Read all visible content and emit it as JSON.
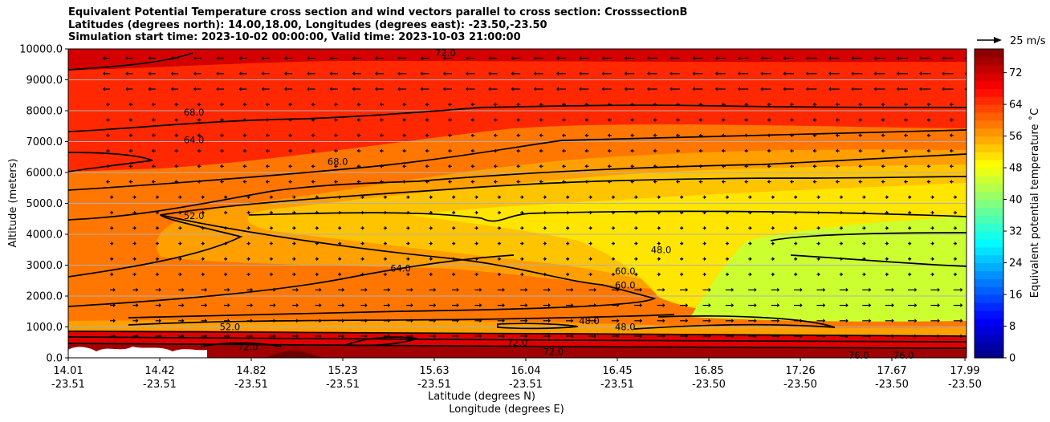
{
  "chart_data": {
    "type": "heatmap",
    "title_lines": [
      "Equivalent Potential Temperature cross section and wind vectors parallel to cross section: CrosssectionB",
      "Latitudes (degrees north): 14.00,18.00, Longitudes (degrees east): -23.50,-23.50",
      "Simulation start time: 2023-10-02 00:00:00, Valid time: 2023-10-03 21:00:00"
    ],
    "ylabel": "Altitude (meters)",
    "xlabel_lat": "Latitude (degrees N)",
    "xlabel_lon": "Longitude (degrees E)",
    "ylim": [
      0,
      10000
    ],
    "yticks": [
      "0.0",
      "1000.0",
      "2000.0",
      "3000.0",
      "4000.0",
      "5000.0",
      "6000.0",
      "7000.0",
      "8000.0",
      "9000.0",
      "10000.0"
    ],
    "ytick_values": [
      0,
      1000,
      2000,
      3000,
      4000,
      5000,
      6000,
      7000,
      8000,
      9000,
      10000
    ],
    "xticks_lat": [
      "14.01",
      "14.42",
      "14.82",
      "15.23",
      "15.63",
      "16.04",
      "16.45",
      "16.85",
      "17.26",
      "17.67",
      "17.99"
    ],
    "xticks_lon": [
      "-23.51",
      "-23.51",
      "-23.51",
      "-23.51",
      "-23.51",
      "-23.51",
      "-23.51",
      "-23.50",
      "-23.50",
      "-23.50",
      "-23.50"
    ],
    "grid": "horizontal",
    "colorbar": {
      "label": "Equivalent potential temperature $^\\circ$C",
      "label_text": "Equivalent potential temperature ˚C",
      "ticks": [
        "0",
        "8",
        "16",
        "24",
        "32",
        "40",
        "48",
        "56",
        "64",
        "72"
      ],
      "tick_values": [
        0,
        8,
        16,
        24,
        32,
        40,
        48,
        56,
        64,
        72
      ],
      "range": [
        0,
        78
      ]
    },
    "quiver_key": "25 m/s",
    "contour_labels": [
      {
        "text": "72.0",
        "x": 0.42,
        "z": 9870
      },
      {
        "text": "68.0",
        "x": 0.3,
        "z": 6350
      },
      {
        "text": "68.0",
        "x": 0.14,
        "z": 7950
      },
      {
        "text": "64.0",
        "x": 0.14,
        "z": 7050
      },
      {
        "text": "52.0",
        "x": 0.14,
        "z": 4600
      },
      {
        "text": "64.0",
        "x": 0.37,
        "z": 2900
      },
      {
        "text": "60.0",
        "x": 0.62,
        "z": 2800
      },
      {
        "text": "60.0",
        "x": 0.62,
        "z": 2350
      },
      {
        "text": "48.0",
        "x": 0.66,
        "z": 3500
      },
      {
        "text": "48.0",
        "x": 0.62,
        "z": 1000
      },
      {
        "text": "48.0",
        "x": 0.58,
        "z": 1200
      },
      {
        "text": "52.0",
        "x": 0.18,
        "z": 1000
      },
      {
        "text": "72.0",
        "x": 0.2,
        "z": 350
      },
      {
        "text": "72.0",
        "x": 0.5,
        "z": 500
      },
      {
        "text": "72.0",
        "x": 0.54,
        "z": 200
      },
      {
        "text": "76.0",
        "x": 0.88,
        "z": 80
      },
      {
        "text": "76.0",
        "x": 0.93,
        "z": 80
      }
    ]
  }
}
